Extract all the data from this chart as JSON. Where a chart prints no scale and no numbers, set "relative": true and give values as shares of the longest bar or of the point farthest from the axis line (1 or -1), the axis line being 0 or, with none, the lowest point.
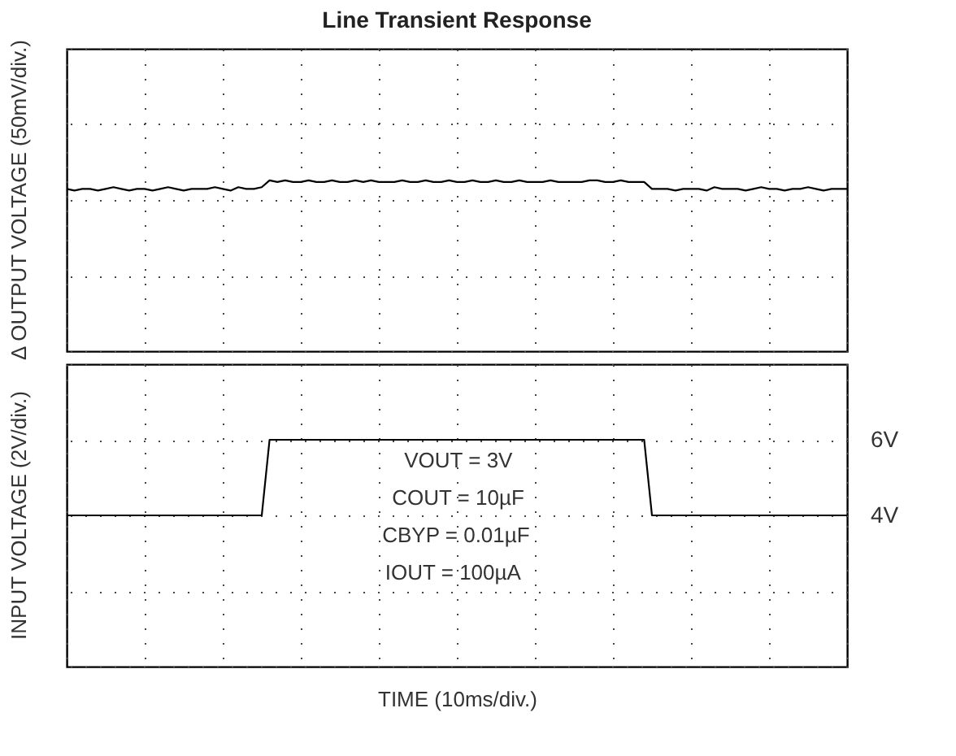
{
  "chart_data": [
    {
      "type": "line",
      "title": "Line Transient Response",
      "ylabel": "Δ OUTPUT VOLTAGE (50mV/div.)",
      "relative": true,
      "grid": true,
      "line_style": "solid",
      "tick_labels": false,
      "categories": [
        null,
        null,
        null,
        null,
        null,
        null,
        null,
        null,
        null,
        null,
        null,
        null,
        null,
        null,
        null,
        null,
        null,
        null,
        null,
        null,
        null,
        null,
        null,
        null,
        null,
        null,
        null,
        null,
        null,
        null,
        null,
        null,
        null,
        null,
        null,
        null,
        null,
        null,
        null,
        null,
        null,
        null,
        null,
        null,
        null,
        null,
        null,
        null,
        null,
        null,
        null,
        null,
        null,
        null,
        null,
        null,
        null,
        null,
        null,
        null,
        null,
        null,
        null,
        null,
        null,
        null,
        null,
        null,
        null,
        null,
        null,
        null,
        null,
        null,
        null,
        null,
        null,
        null,
        null,
        null,
        null,
        null,
        null,
        null,
        null,
        null,
        null,
        null,
        null,
        null,
        null,
        null,
        null,
        null,
        null,
        null,
        null,
        null,
        null,
        null,
        null
      ],
      "series": [
        {
          "color": "#000000",
          "values": [
            0.95,
            0.94,
            0.95,
            0.95,
            0.94,
            0.95,
            0.96,
            0.95,
            0.94,
            0.95,
            0.95,
            0.94,
            0.95,
            0.96,
            0.95,
            0.94,
            0.95,
            0.95,
            0.95,
            0.96,
            0.95,
            0.94,
            0.96,
            0.95,
            0.95,
            0.96,
            1,
            0.99,
            1,
            0.99,
            0.99,
            1,
            0.99,
            0.99,
            1,
            0.99,
            0.99,
            1,
            0.99,
            1,
            0.99,
            0.99,
            0.99,
            1,
            0.99,
            0.99,
            1,
            0.99,
            0.99,
            1,
            0.99,
            0.99,
            1,
            0.99,
            0.99,
            1,
            0.99,
            0.99,
            1,
            0.99,
            0.99,
            0.99,
            1,
            0.99,
            0.99,
            0.99,
            0.99,
            1,
            1,
            0.99,
            0.99,
            1,
            0.99,
            0.99,
            0.99,
            0.95,
            0.95,
            0.95,
            0.94,
            0.95,
            0.95,
            0.95,
            0.94,
            0.96,
            0.95,
            0.95,
            0.95,
            0.94,
            0.95,
            0.96,
            0.95,
            0.95,
            0.94,
            0.95,
            0.95,
            0.96,
            0.95,
            0.94,
            0.95,
            0.95,
            0.95
          ]
        }
      ]
    },
    {
      "type": "line",
      "xlabel": "TIME (10ms/div.)",
      "ylabel": "INPUT VOLTAGE (2V/div.)",
      "grid": true,
      "line_style": "solid",
      "tick_labels": "y",
      "ylim": [
        0,
        8
      ],
      "yticks": [
        {
          "value": 0,
          "label": null
        },
        {
          "value": 2,
          "label": null
        },
        {
          "value": 4,
          "label": "4V"
        },
        {
          "value": 6,
          "label": "6V"
        },
        {
          "value": 8,
          "label": null
        }
      ],
      "categories": [
        null,
        null,
        null,
        null,
        null,
        null,
        null,
        null,
        null,
        null,
        null,
        null,
        null,
        null,
        null,
        null,
        null,
        null,
        null,
        null,
        null,
        null,
        null,
        null,
        null,
        null,
        null,
        null,
        null,
        null,
        null,
        null,
        null,
        null,
        null,
        null,
        null,
        null,
        null,
        null,
        null,
        null,
        null,
        null,
        null,
        null,
        null,
        null,
        null,
        null,
        null,
        null,
        null,
        null,
        null,
        null,
        null,
        null,
        null,
        null,
        null,
        null,
        null,
        null,
        null,
        null,
        null,
        null,
        null,
        null,
        null,
        null,
        null,
        null,
        null,
        null,
        null,
        null,
        null,
        null,
        null,
        null,
        null,
        null,
        null,
        null,
        null,
        null,
        null,
        null,
        null,
        null,
        null,
        null,
        null,
        null,
        null,
        null,
        null,
        null,
        null
      ],
      "series": [
        {
          "color": "#000000",
          "values": [
            4,
            4,
            4,
            4,
            4,
            4,
            4,
            4,
            4,
            4,
            4,
            4,
            4,
            4,
            4,
            4,
            4,
            4,
            4,
            4,
            4,
            4,
            4,
            4,
            4,
            4,
            6,
            6,
            6,
            6,
            6,
            6,
            6,
            6,
            6,
            6,
            6,
            6,
            6,
            6,
            6,
            6,
            6,
            6,
            6,
            6,
            6,
            6,
            6,
            6,
            6,
            6,
            6,
            6,
            6,
            6,
            6,
            6,
            6,
            6,
            6,
            6,
            6,
            6,
            6,
            6,
            6,
            6,
            6,
            6,
            6,
            6,
            6,
            6,
            6,
            4,
            4,
            4,
            4,
            4,
            4,
            4,
            4,
            4,
            4,
            4,
            4,
            4,
            4,
            4,
            4,
            4,
            4,
            4,
            4,
            4,
            4,
            4,
            4,
            4,
            4
          ]
        }
      ],
      "annotations": [
        "VOUT = 3V",
        "COUT = 10µF",
        "CBYP = 0.01µF",
        "IOUT = 100µA"
      ]
    }
  ]
}
